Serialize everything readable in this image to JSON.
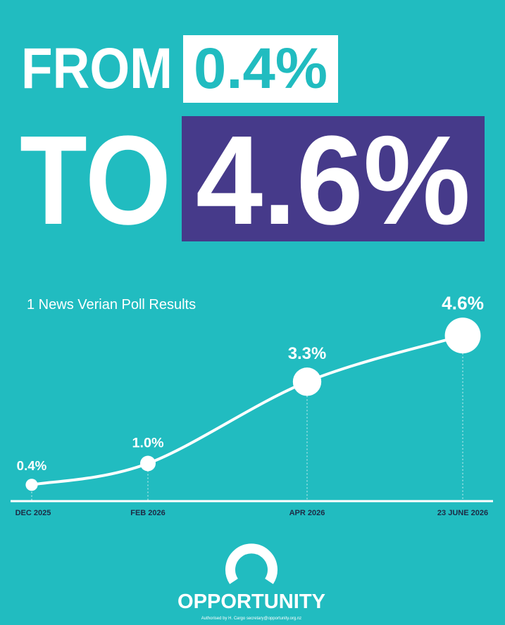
{
  "headline": {
    "from": "FROM",
    "from_value": "0.4%",
    "to": "TO",
    "to_value": "4.6%"
  },
  "chart_data": {
    "type": "line",
    "title": "1 News Verian Poll Results",
    "categories": [
      "DEC 2025",
      "FEB 2026",
      "APR 2026",
      "23 JUNE 2026"
    ],
    "values": [
      0.4,
      1.0,
      3.3,
      4.6
    ],
    "value_labels": [
      "0.4%",
      "1.0%",
      "3.3%",
      "4.6%"
    ],
    "color": "#ffffff"
  },
  "footer": {
    "logo": "OPPORTUNITY",
    "authorisation": "Authorised by H. Cargo secretary@opportunity.org.nz"
  }
}
